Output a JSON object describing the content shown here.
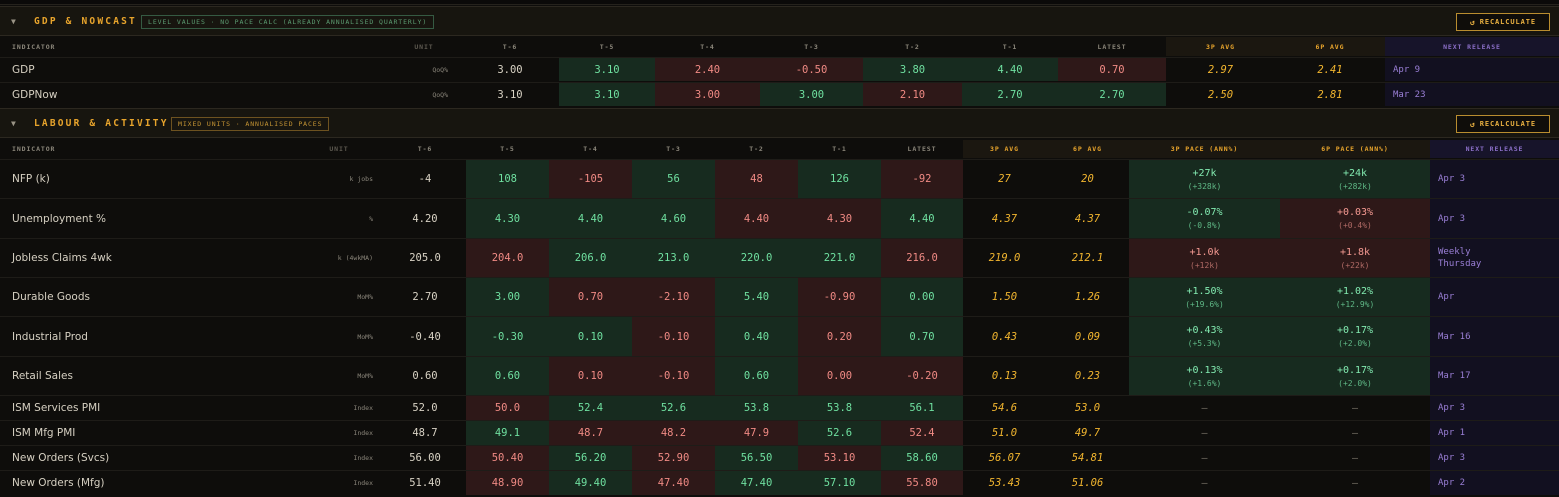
{
  "gdp": {
    "title": "GDP & NOWCAST",
    "pill": "LEVEL VALUES · NO PACE CALC (ALREADY ANNUALISED QUARTERLY)",
    "recalc_label": "RECALCULATE",
    "headers": [
      "INDICATOR",
      "UNIT",
      "T-6",
      "T-5",
      "T-4",
      "T-3",
      "T-2",
      "T-1",
      "LATEST",
      "3P AVG",
      "6P AVG",
      "NEXT RELEASE"
    ],
    "rows": [
      {
        "name": "GDP",
        "unit": "QoQ%",
        "vals": [
          "3.00",
          "3.10",
          "2.40",
          "-0.50",
          "3.80",
          "4.40",
          "0.70"
        ],
        "avg3": "2.97",
        "avg6": "2.41",
        "next": "Apr 9"
      },
      {
        "name": "GDPNow",
        "unit": "QoQ%",
        "vals": [
          "3.10",
          "3.10",
          "3.00",
          "3.00",
          "2.10",
          "2.70",
          "2.70"
        ],
        "avg3": "2.50",
        "avg6": "2.81",
        "next": "Mar 23"
      }
    ]
  },
  "labour": {
    "title": "LABOUR & ACTIVITY",
    "pill": "MIXED UNITS · ANNUALISED PACES",
    "recalc_label": "RECALCULATE",
    "headers": [
      "INDICATOR",
      "UNIT",
      "T-6",
      "T-5",
      "T-4",
      "T-3",
      "T-2",
      "T-1",
      "LATEST",
      "3P AVG",
      "6P AVG",
      "3P PACE (ANN%)",
      "6P PACE (ANN%)",
      "NEXT RELEASE"
    ],
    "rows": [
      {
        "name": "NFP (k)",
        "unit": "k jobs",
        "vals": [
          "-4",
          "108",
          "-105",
          "56",
          "48",
          "126",
          "-92"
        ],
        "avg3": "27",
        "avg6": "20",
        "pace3": "+27k",
        "pace3s": "(+328k)",
        "pace6": "+24k",
        "pace6s": "(+282k)",
        "next": "Apr 3"
      },
      {
        "name": "Unemployment %",
        "unit": "%",
        "vals": [
          "4.20",
          "4.30",
          "4.40",
          "4.60",
          "4.40",
          "4.30",
          "4.40"
        ],
        "avg3": "4.37",
        "avg6": "4.37",
        "pace3": "-0.07%",
        "pace3s": "(-0.8%)",
        "pace6": "+0.03%",
        "pace6s": "(+0.4%)",
        "next": "Apr 3"
      },
      {
        "name": "Jobless Claims 4wk",
        "unit": "k (4wkMA)",
        "vals": [
          "205.0",
          "204.0",
          "206.0",
          "213.0",
          "220.0",
          "221.0",
          "216.0"
        ],
        "avg3": "219.0",
        "avg6": "212.1",
        "pace3": "+1.0k",
        "pace3s": "(+12k)",
        "pace6": "+1.8k",
        "pace6s": "(+22k)",
        "next": "Weekly",
        "next2": "Thursday"
      },
      {
        "name": "Durable Goods",
        "unit": "MoM%",
        "vals": [
          "2.70",
          "3.00",
          "0.70",
          "-2.10",
          "5.40",
          "-0.90",
          "0.00"
        ],
        "avg3": "1.50",
        "avg6": "1.26",
        "pace3": "+1.50%",
        "pace3s": "(+19.6%)",
        "pace6": "+1.02%",
        "pace6s": "(+12.9%)",
        "next": "Apr"
      },
      {
        "name": "Industrial Prod",
        "unit": "MoM%",
        "vals": [
          "-0.40",
          "-0.30",
          "0.10",
          "-0.10",
          "0.40",
          "0.20",
          "0.70"
        ],
        "avg3": "0.43",
        "avg6": "0.09",
        "pace3": "+0.43%",
        "pace3s": "(+5.3%)",
        "pace6": "+0.17%",
        "pace6s": "(+2.0%)",
        "next": "Mar 16"
      },
      {
        "name": "Retail Sales",
        "unit": "MoM%",
        "vals": [
          "0.60",
          "0.60",
          "0.10",
          "-0.10",
          "0.60",
          "0.00",
          "-0.20"
        ],
        "avg3": "0.13",
        "avg6": "0.23",
        "pace3": "+0.13%",
        "pace3s": "(+1.6%)",
        "pace6": "+0.17%",
        "pace6s": "(+2.0%)",
        "next": "Mar 17"
      },
      {
        "name": "ISM Services PMI",
        "unit": "Index",
        "vals": [
          "52.0",
          "50.0",
          "52.4",
          "52.6",
          "53.8",
          "53.8",
          "56.1"
        ],
        "avg3": "54.6",
        "avg6": "53.0",
        "pace3": "—",
        "pace6": "—",
        "next": "Apr 3"
      },
      {
        "name": "ISM Mfg PMI",
        "unit": "Index",
        "vals": [
          "48.7",
          "49.1",
          "48.7",
          "48.2",
          "47.9",
          "52.6",
          "52.4"
        ],
        "avg3": "51.0",
        "avg6": "49.7",
        "pace3": "—",
        "pace6": "—",
        "next": "Apr 1"
      },
      {
        "name": "New Orders (Svcs)",
        "unit": "Index",
        "vals": [
          "56.00",
          "50.40",
          "56.20",
          "52.90",
          "56.50",
          "53.10",
          "58.60"
        ],
        "avg3": "56.07",
        "avg6": "54.81",
        "pace3": "—",
        "pace6": "—",
        "next": "Apr 3"
      },
      {
        "name": "New Orders (Mfg)",
        "unit": "Index",
        "vals": [
          "51.40",
          "48.90",
          "49.40",
          "47.40",
          "47.40",
          "57.10",
          "55.80"
        ],
        "avg3": "53.43",
        "avg6": "51.06",
        "pace3": "—",
        "pace6": "—",
        "next": "Apr 2"
      }
    ]
  },
  "colors": {
    "accent": "#e9a52c",
    "positive_bg": "#172b1f",
    "negative_bg": "#2e1818",
    "positive_text": "#6fe0a0",
    "negative_text": "#f08a84",
    "next_release": "#9a7fd6"
  },
  "icons": {
    "collapse": "caret-down-icon",
    "recalc": "refresh-icon"
  }
}
